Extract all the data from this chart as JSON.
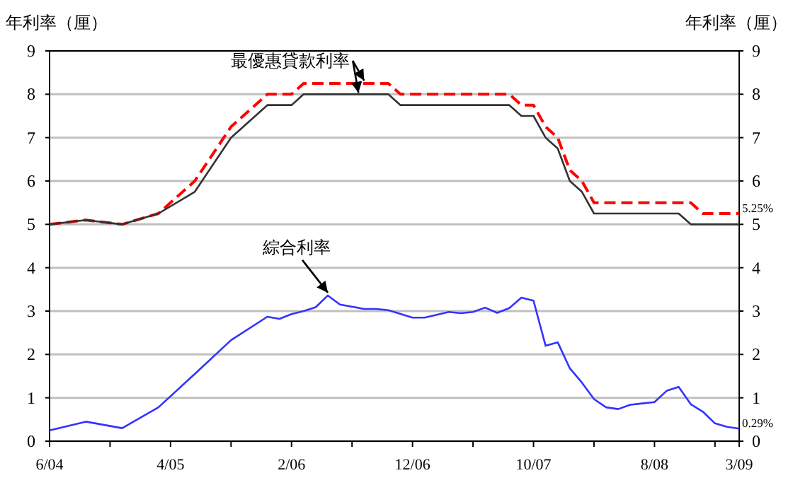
{
  "chart_data": {
    "type": "line",
    "ylabel": "年利率（厘）",
    "y2label": "年利率（厘）",
    "xlim": [
      "2004-06",
      "2009-03"
    ],
    "xticks": [
      {
        "value": "2004-06",
        "label": "6/04"
      },
      {
        "value": "2004-11",
        "label": null
      },
      {
        "value": "2005-04",
        "label": "4/05"
      },
      {
        "value": "2005-09",
        "label": null
      },
      {
        "value": "2006-02",
        "label": "2/06"
      },
      {
        "value": "2006-07",
        "label": null
      },
      {
        "value": "2006-12",
        "label": "12/06"
      },
      {
        "value": "2007-05",
        "label": null
      },
      {
        "value": "2007-10",
        "label": "10/07"
      },
      {
        "value": "2008-03",
        "label": null
      },
      {
        "value": "2008-08",
        "label": "8/08"
      },
      {
        "value": "2009-01",
        "label": null
      },
      {
        "value": "2009-03",
        "label": "3/09"
      }
    ],
    "ylim": [
      0,
      9
    ],
    "yticks": [
      0,
      1,
      2,
      3,
      4,
      5,
      6,
      7,
      8,
      9
    ],
    "y2lim": [
      0,
      9
    ],
    "y2ticks": [
      0,
      1,
      2,
      3,
      4,
      5,
      6,
      7,
      8,
      9
    ],
    "grid": "y",
    "marker": "none",
    "series": [
      {
        "color": "#ff0000",
        "line_style": "dashed",
        "x": [
          "2004-06",
          "2004-09",
          "2004-12",
          "2005-03",
          "2005-06",
          "2005-09",
          "2005-12",
          "2006-02",
          "2006-03",
          "2006-10",
          "2006-11",
          "2007-08",
          "2007-09",
          "2007-10",
          "2007-11",
          "2007-12",
          "2008-01",
          "2008-02",
          "2008-03",
          "2008-11",
          "2008-12",
          "2009-03"
        ],
        "values": [
          5.0,
          5.1,
          5.0,
          5.25,
          6.0,
          7.25,
          8.0,
          8.0,
          8.25,
          8.25,
          8.0,
          8.0,
          7.75,
          7.75,
          7.25,
          7.0,
          6.25,
          6.0,
          5.5,
          5.5,
          5.25,
          5.25
        ]
      },
      {
        "color": "#333333",
        "line_style": "solid",
        "x": [
          "2004-06",
          "2004-09",
          "2004-12",
          "2005-03",
          "2005-06",
          "2005-09",
          "2005-12",
          "2006-02",
          "2006-03",
          "2006-10",
          "2006-11",
          "2007-08",
          "2007-09",
          "2007-10",
          "2007-11",
          "2007-12",
          "2008-01",
          "2008-02",
          "2008-03",
          "2008-10",
          "2008-11",
          "2009-03"
        ],
        "values": [
          5.0,
          5.1,
          5.0,
          5.25,
          5.75,
          7.0,
          7.75,
          7.75,
          8.0,
          8.0,
          7.75,
          7.75,
          7.5,
          7.5,
          7.0,
          6.75,
          6.0,
          5.75,
          5.25,
          5.25,
          5.0,
          5.0
        ]
      },
      {
        "color": "#3333ff",
        "line_style": "solid",
        "x": [
          "2004-06",
          "2004-09",
          "2004-12",
          "2005-03",
          "2005-06",
          "2005-09",
          "2005-12",
          "2006-01",
          "2006-02",
          "2006-03",
          "2006-04",
          "2006-05",
          "2006-06",
          "2006-08",
          "2006-09",
          "2006-10",
          "2006-12",
          "2007-01",
          "2007-03",
          "2007-04",
          "2007-05",
          "2007-06",
          "2007-07",
          "2007-08",
          "2007-09",
          "2007-10",
          "2007-11",
          "2007-12",
          "2008-01",
          "2008-02",
          "2008-03",
          "2008-04",
          "2008-05",
          "2008-06",
          "2008-07",
          "2008-08",
          "2008-09",
          "2008-10",
          "2008-11",
          "2008-12",
          "2009-01",
          "2009-02",
          "2009-03"
        ],
        "values": [
          0.25,
          0.45,
          0.3,
          0.78,
          1.55,
          2.33,
          2.87,
          2.82,
          2.93,
          3.0,
          3.09,
          3.36,
          3.15,
          3.05,
          3.05,
          3.02,
          2.85,
          2.85,
          2.98,
          2.95,
          2.98,
          3.08,
          2.96,
          3.07,
          3.31,
          3.24,
          2.2,
          2.28,
          1.68,
          1.35,
          0.97,
          0.78,
          0.74,
          0.84,
          0.87,
          0.9,
          1.16,
          1.25,
          0.85,
          0.68,
          0.41,
          0.33,
          0.29
        ]
      }
    ],
    "annotations": [
      {
        "text": "最優惠貸款利率",
        "x": "2006-08",
        "y": 8.25
      },
      {
        "text": "綜合利率",
        "x": "2006-05",
        "y": 3.36
      },
      {
        "text": "5.25%",
        "x": "2009-03",
        "y": 5.25
      },
      {
        "text": "0.29%",
        "x": "2009-03",
        "y": 0.29
      }
    ]
  }
}
